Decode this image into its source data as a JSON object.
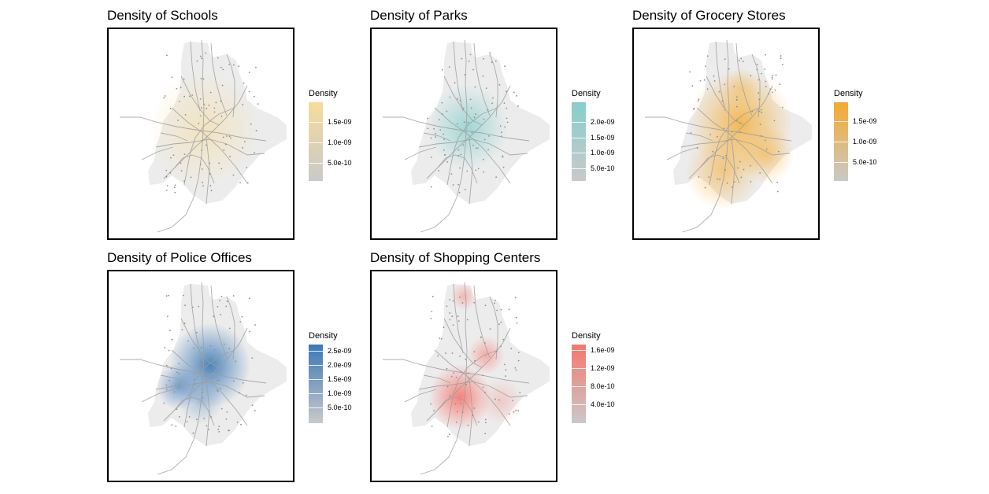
{
  "panels": [
    {
      "id": "schools",
      "title": "Density of Schools",
      "color": "#f7dc9a",
      "hotspots": [
        [
          0.52,
          0.48,
          0.3,
          0.55
        ]
      ],
      "legend": {
        "title": "Density",
        "ticks": [
          {
            "label": "1.5e-09",
            "frac": 0.75
          },
          {
            "label": "1.0e-09",
            "frac": 0.49
          },
          {
            "label": "5.0e-10",
            "frac": 0.23
          }
        ]
      }
    },
    {
      "id": "parks",
      "title": "Density of Parks",
      "color": "#86cfcd",
      "hotspots": [
        [
          0.52,
          0.47,
          0.22,
          0.75
        ]
      ],
      "legend": {
        "title": "Density",
        "ticks": [
          {
            "label": "2.0e-09",
            "frac": 0.75
          },
          {
            "label": "1.5e-09",
            "frac": 0.55
          },
          {
            "label": "1.0e-09",
            "frac": 0.36
          },
          {
            "label": "5.0e-10",
            "frac": 0.16
          }
        ]
      }
    },
    {
      "id": "grocery",
      "title": "Density of Grocery Stores",
      "color": "#f5ab2e",
      "hotspots": [
        [
          0.58,
          0.45,
          0.28,
          0.8
        ],
        [
          0.48,
          0.68,
          0.2,
          0.55
        ],
        [
          0.72,
          0.6,
          0.15,
          0.5
        ],
        [
          0.58,
          0.28,
          0.1,
          0.35
        ]
      ],
      "legend": {
        "title": "Density",
        "ticks": [
          {
            "label": "1.5e-09",
            "frac": 0.76
          },
          {
            "label": "1.0e-09",
            "frac": 0.5
          },
          {
            "label": "5.0e-10",
            "frac": 0.24
          }
        ]
      }
    },
    {
      "id": "police",
      "title": "Density of Police Offices",
      "color": "#3a78b6",
      "hotspots": [
        [
          0.55,
          0.45,
          0.22,
          0.9
        ],
        [
          0.38,
          0.55,
          0.12,
          0.65
        ],
        [
          0.5,
          0.62,
          0.12,
          0.35
        ]
      ],
      "legend": {
        "title": "Density",
        "ticks": [
          {
            "label": "2.5e-09",
            "frac": 0.92
          },
          {
            "label": "2.0e-09",
            "frac": 0.74
          },
          {
            "label": "1.5e-09",
            "frac": 0.56
          },
          {
            "label": "1.0e-09",
            "frac": 0.38
          },
          {
            "label": "5.0e-10",
            "frac": 0.2
          }
        ]
      }
    },
    {
      "id": "shopping",
      "title": "Density of Shopping Centers",
      "color": "#f8766d",
      "hotspots": [
        [
          0.48,
          0.6,
          0.17,
          0.9
        ],
        [
          0.62,
          0.4,
          0.1,
          0.55
        ],
        [
          0.5,
          0.12,
          0.07,
          0.45
        ],
        [
          0.7,
          0.62,
          0.12,
          0.3
        ]
      ],
      "legend": {
        "title": "Density",
        "ticks": [
          {
            "label": "1.6e-09",
            "frac": 0.93
          },
          {
            "label": "1.2e-09",
            "frac": 0.7
          },
          {
            "label": "8.0e-10",
            "frac": 0.47
          },
          {
            "label": "4.0e-10",
            "frac": 0.24
          }
        ]
      }
    }
  ]
}
